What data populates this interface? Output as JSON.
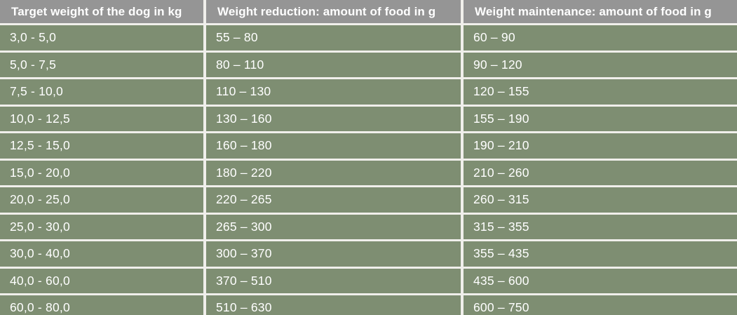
{
  "chart_data": {
    "type": "table",
    "columns": [
      "Target weight of the dog in kg",
      "Weight reduction: amount of food in g",
      "Weight maintenance: amount of food in g"
    ],
    "rows": [
      [
        "3,0 - 5,0",
        "55 – 80",
        "60 – 90"
      ],
      [
        "5,0 - 7,5",
        "80 – 110",
        "90 – 120"
      ],
      [
        "7,5 - 10,0",
        "110 – 130",
        "120 – 155"
      ],
      [
        "10,0 - 12,5",
        "130 – 160",
        "155 – 190"
      ],
      [
        "12,5 - 15,0",
        "160 – 180",
        "190 – 210"
      ],
      [
        "15,0 - 20,0",
        "180 – 220",
        "210 – 260"
      ],
      [
        "20,0 - 25,0",
        "220 – 265",
        "260 – 315"
      ],
      [
        "25,0 - 30,0",
        "265 – 300",
        "315 – 355"
      ],
      [
        "30,0 - 40,0",
        "300 – 370",
        "355 – 435"
      ],
      [
        "40,0 - 60,0",
        "370 – 510",
        "435 – 600"
      ],
      [
        "60,0 - 80,0",
        "510 – 630",
        "600 – 750"
      ]
    ]
  },
  "colors": {
    "header_bg": "#959595",
    "row_bg": "#7e8e72",
    "separator": "#f0efeb",
    "text": "#ffffff"
  }
}
